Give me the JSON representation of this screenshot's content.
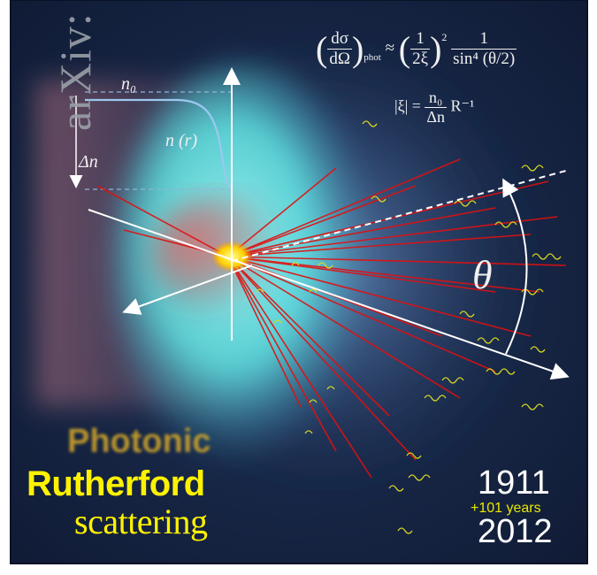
{
  "watermark": {
    "text": "arXiv:"
  },
  "title": {
    "line1": "Photonic",
    "line2": "Rutherford",
    "line3": "scattering"
  },
  "timeline": {
    "start_year": "1911",
    "delta": "+101 years",
    "end_year": "2012"
  },
  "labels": {
    "n0": "n₀",
    "n_r": "n (r)",
    "delta_n": "Δn",
    "theta": "θ"
  },
  "formula": {
    "lhs_num": "dσ",
    "lhs_den": "dΩ",
    "lhs_sub": "phot",
    "approx": "≈",
    "coef_num": "1",
    "coef_den": "2ξ",
    "coef_exp": "2",
    "rhs_num": "1",
    "rhs_den": "sin⁴ (θ/2)",
    "xi_lhs": "|ξ| =",
    "xi_num": "n₀",
    "xi_den": "Δn",
    "xi_rhs": "R⁻¹"
  },
  "colors": {
    "background": "#14213d",
    "glow_cyan": "#5fe8e6",
    "glow_red": "#c8404a",
    "ray_red": "#e01010",
    "photon_yellow": "#d8d820",
    "text_yellow": "#fff200",
    "photonic_gold": "#d4a72a"
  }
}
